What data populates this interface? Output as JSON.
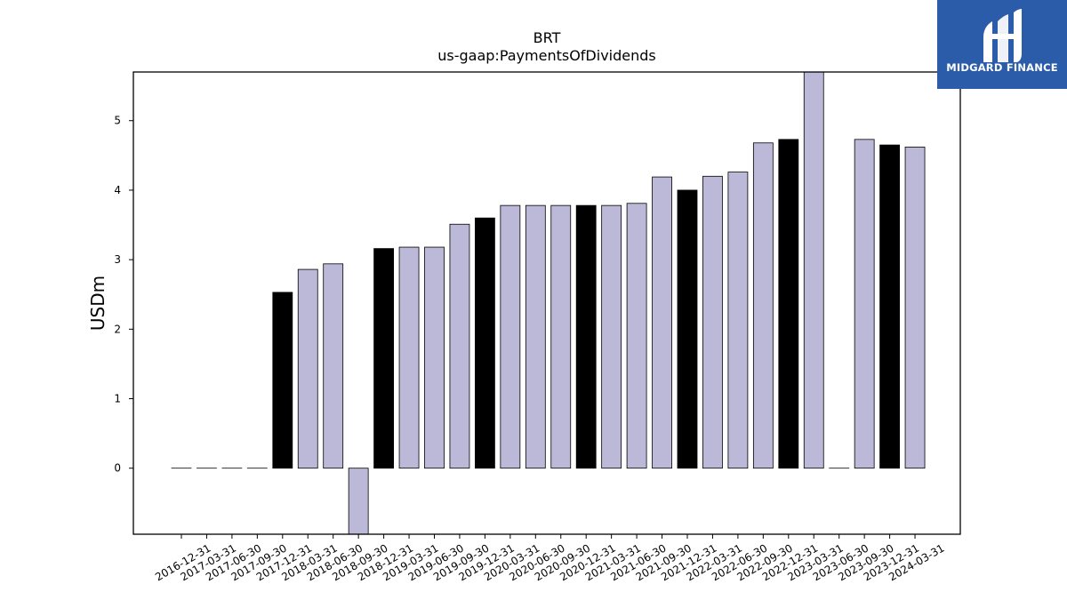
{
  "brand": {
    "name": "MIDGARD FINANCE",
    "bg_color": "#2a5caa",
    "mark_color": "#ffffff"
  },
  "chart_data": {
    "type": "bar",
    "title": "BRT",
    "subtitle": "us-gaap:PaymentsOfDividends",
    "xlabel": "",
    "ylabel": "USDm",
    "ylim": [
      -0.95,
      5.7
    ],
    "yticks": [
      0,
      1,
      2,
      3,
      4,
      5
    ],
    "grid": false,
    "legend": "none",
    "colors": {
      "light": "#bcb8d8",
      "dark": "#000000",
      "edge": "#000000"
    },
    "categories": [
      "2016-12-31",
      "2017-03-31",
      "2017-06-30",
      "2017-09-30",
      "2017-12-31",
      "2018-03-31",
      "2018-06-30",
      "2018-09-30",
      "2018-12-31",
      "2019-03-31",
      "2019-06-30",
      "2019-09-30",
      "2019-12-31",
      "2020-03-31",
      "2020-06-30",
      "2020-09-30",
      "2020-12-31",
      "2021-03-31",
      "2021-06-30",
      "2021-09-30",
      "2021-12-31",
      "2022-03-31",
      "2022-06-30",
      "2022-09-30",
      "2022-12-31",
      "2023-03-31",
      "2023-06-30",
      "2023-09-30",
      "2023-12-31",
      "2024-03-31"
    ],
    "values": [
      0,
      0,
      0,
      0,
      2.53,
      2.86,
      2.94,
      -1.05,
      3.16,
      3.18,
      3.18,
      3.51,
      3.6,
      3.78,
      3.78,
      3.78,
      3.78,
      3.78,
      3.81,
      4.19,
      4.0,
      4.2,
      4.26,
      4.68,
      4.73,
      5.8,
      0,
      4.73,
      4.65,
      4.62
    ],
    "bar_colors": [
      "light",
      "light",
      "light",
      "light",
      "dark",
      "light",
      "light",
      "light",
      "dark",
      "light",
      "light",
      "light",
      "dark",
      "light",
      "light",
      "light",
      "dark",
      "light",
      "light",
      "light",
      "dark",
      "light",
      "light",
      "light",
      "dark",
      "light",
      "light",
      "light",
      "dark",
      "light"
    ]
  }
}
